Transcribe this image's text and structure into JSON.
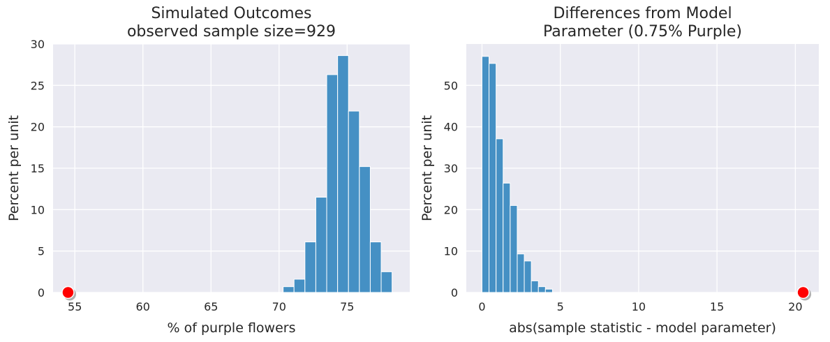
{
  "chart_data": [
    {
      "type": "bar",
      "title": "Simulated Outcomes\nobserved sample size=929",
      "xlabel": "% of purple flowers",
      "ylabel": "Percent per unit",
      "xlim": [
        53.4,
        79.6
      ],
      "ylim": [
        0,
        30
      ],
      "xticks": [
        55,
        60,
        65,
        70,
        75
      ],
      "yticks": [
        0,
        5,
        10,
        15,
        20,
        25,
        30
      ],
      "grid": true,
      "bin_edges": [
        70.3,
        71.1,
        71.9,
        72.7,
        73.5,
        74.3,
        75.1,
        75.9,
        76.7,
        77.5,
        78.3,
        79.1
      ],
      "values": [
        0.7,
        1.6,
        6.1,
        11.5,
        26.3,
        28.6,
        21.9,
        15.2,
        6.1,
        2.5,
        0.0
      ],
      "observed_point": {
        "x": 54.5,
        "y": 0,
        "color": "#ff0000"
      }
    },
    {
      "type": "bar",
      "title": "Differences from Model\nParameter (0.75% Purple)",
      "xlabel": "abs(sample statistic - model parameter)",
      "ylabel": "Percent per unit",
      "xlim": [
        -1.0,
        21.5
      ],
      "ylim": [
        0,
        60
      ],
      "xticks": [
        0,
        5,
        10,
        15,
        20
      ],
      "yticks": [
        0,
        10,
        20,
        30,
        40,
        50
      ],
      "grid": true,
      "bin_edges": [
        0.0,
        0.45,
        0.9,
        1.35,
        1.8,
        2.25,
        2.7,
        3.15,
        3.6,
        4.05,
        4.5
      ],
      "values": [
        57.0,
        55.3,
        37.1,
        26.4,
        21.0,
        9.3,
        7.6,
        2.8,
        1.4,
        0.8
      ],
      "observed_point": {
        "x": 20.5,
        "y": 0,
        "color": "#ff0000"
      }
    }
  ]
}
